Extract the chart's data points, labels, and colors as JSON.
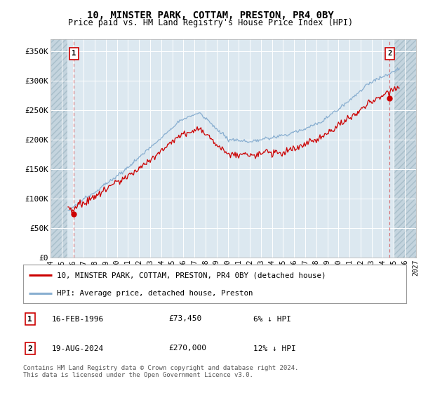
{
  "title": "10, MINSTER PARK, COTTAM, PRESTON, PR4 0BY",
  "subtitle": "Price paid vs. HM Land Registry's House Price Index (HPI)",
  "ylim": [
    0,
    370000
  ],
  "yticks": [
    0,
    50000,
    100000,
    150000,
    200000,
    250000,
    300000,
    350000
  ],
  "ytick_labels": [
    "£0",
    "£50K",
    "£100K",
    "£150K",
    "£200K",
    "£250K",
    "£300K",
    "£350K"
  ],
  "bg_color": "#dce8f0",
  "hatch_color": "#c4d4de",
  "grid_color": "#ffffff",
  "red_color": "#cc0000",
  "blue_color": "#88aed0",
  "legend_label_red": "10, MINSTER PARK, COTTAM, PRESTON, PR4 0BY (detached house)",
  "legend_label_blue": "HPI: Average price, detached house, Preston",
  "annotation1_label": "1",
  "annotation1_date": "16-FEB-1996",
  "annotation1_price": "£73,450",
  "annotation1_hpi": "6% ↓ HPI",
  "annotation2_label": "2",
  "annotation2_date": "19-AUG-2024",
  "annotation2_price": "£270,000",
  "annotation2_hpi": "12% ↓ HPI",
  "footer": "Contains HM Land Registry data © Crown copyright and database right 2024.\nThis data is licensed under the Open Government Licence v3.0.",
  "sale1_x": 1996.12,
  "sale1_y": 73450,
  "sale2_x": 2024.63,
  "sale2_y": 270000,
  "xmin": 1994,
  "xmax": 2027,
  "hatch_left_end": 1995.5,
  "hatch_right_start": 2025.0,
  "xtick_labels": [
    "1994",
    "1995",
    "1996",
    "1997",
    "1998",
    "1999",
    "2000",
    "2001",
    "2002",
    "2003",
    "2004",
    "2005",
    "2006",
    "2007",
    "2008",
    "2009",
    "2010",
    "2011",
    "2012",
    "2013",
    "2014",
    "2015",
    "2016",
    "2017",
    "2018",
    "2019",
    "2020",
    "2021",
    "2022",
    "2023",
    "2024",
    "2025",
    "2026",
    "2027"
  ],
  "xticks": [
    1994,
    1995,
    1996,
    1997,
    1998,
    1999,
    2000,
    2001,
    2002,
    2003,
    2004,
    2005,
    2006,
    2007,
    2008,
    2009,
    2010,
    2011,
    2012,
    2013,
    2014,
    2015,
    2016,
    2017,
    2018,
    2019,
    2020,
    2021,
    2022,
    2023,
    2024,
    2025,
    2026,
    2027
  ]
}
